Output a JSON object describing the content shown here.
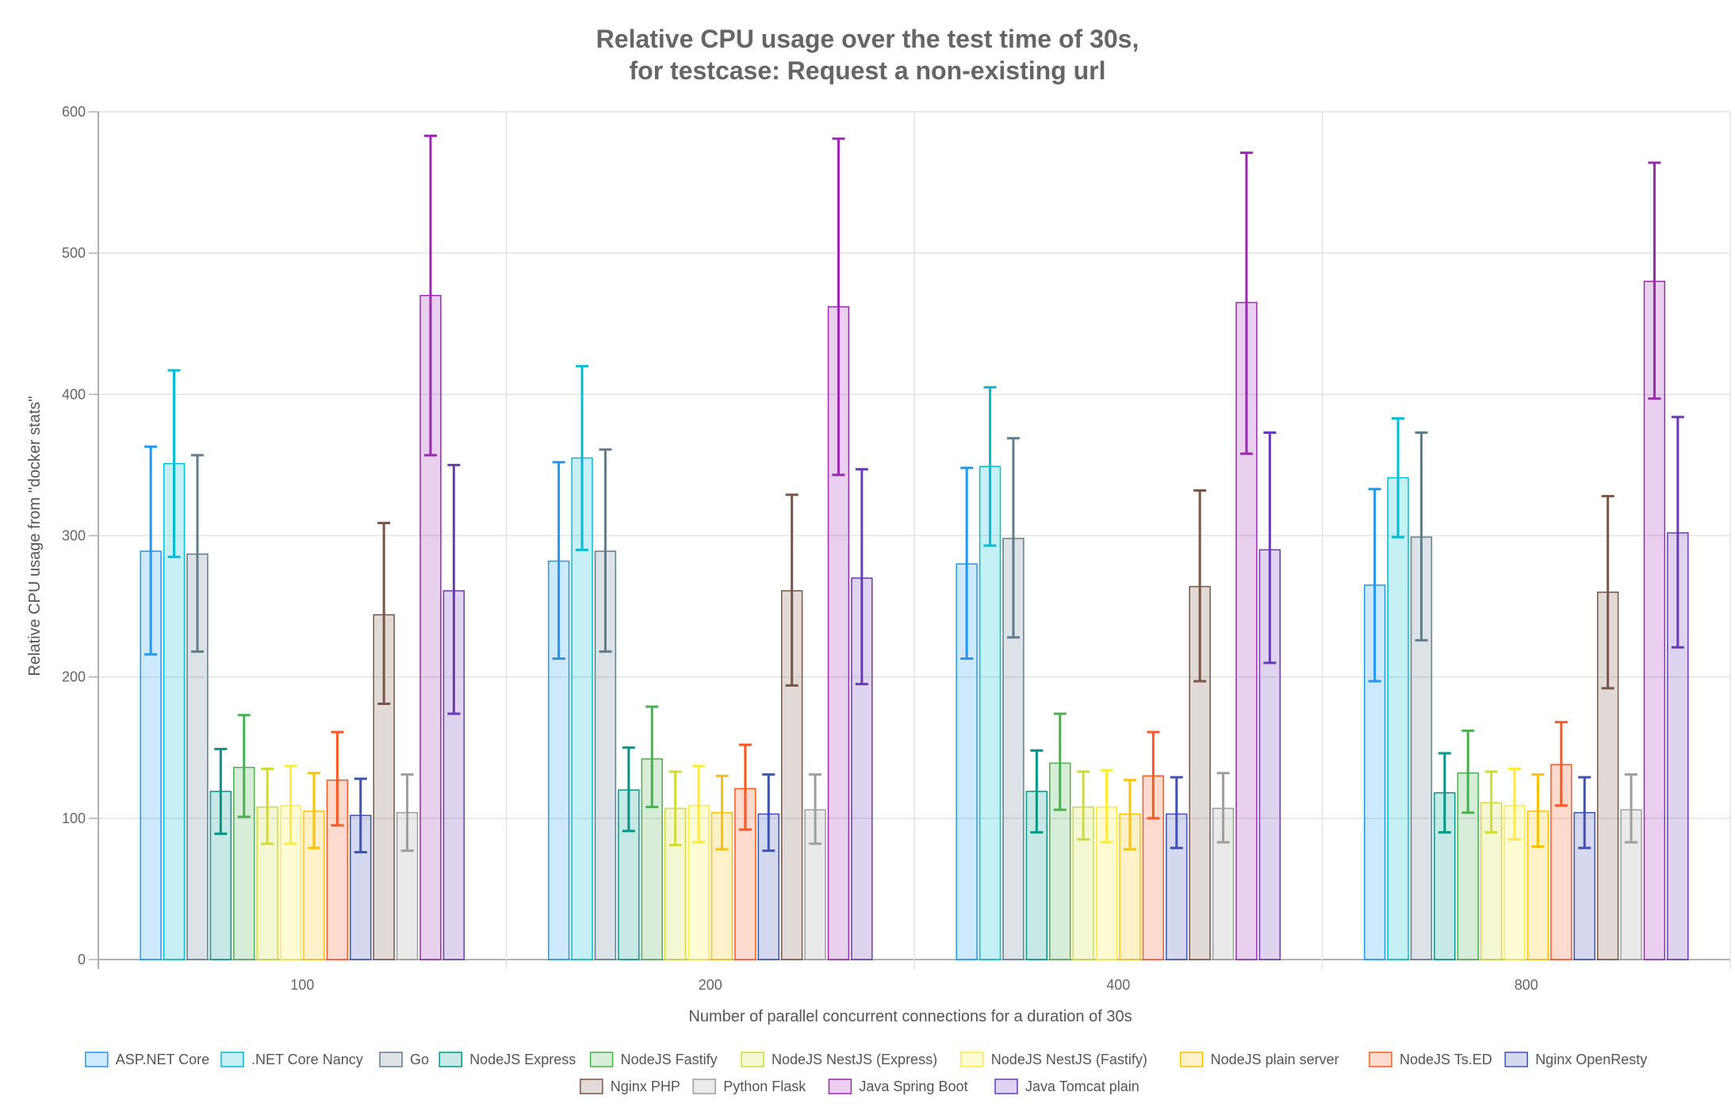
{
  "chart_data": {
    "type": "bar",
    "title_lines": [
      "Relative CPU usage over the test time of 30s,",
      "for testcase: Request a non-existing url"
    ],
    "xlabel": "Number of parallel concurrent connections for a duration of 30s",
    "ylabel": "Relative CPU usage from \"docker stats\"",
    "ylim": [
      0,
      600
    ],
    "yticks": [
      0,
      100,
      200,
      300,
      400,
      500,
      600
    ],
    "categories": [
      "100",
      "200",
      "400",
      "800"
    ],
    "grid": true,
    "legend_position": "bottom",
    "series": [
      {
        "name": "ASP.NET Core",
        "color": "#2196f3",
        "values": [
          289,
          282,
          280,
          265
        ],
        "err_low": [
          216,
          213,
          213,
          197
        ],
        "err_high": [
          363,
          352,
          348,
          333
        ]
      },
      {
        "name": ".NET Core Nancy",
        "color": "#00bcd4",
        "values": [
          351,
          355,
          349,
          341
        ],
        "err_low": [
          285,
          290,
          293,
          299
        ],
        "err_high": [
          417,
          420,
          405,
          383
        ]
      },
      {
        "name": "Go",
        "color": "#607d8b",
        "values": [
          287,
          289,
          298,
          299
        ],
        "err_low": [
          218,
          218,
          228,
          226
        ],
        "err_high": [
          357,
          361,
          369,
          373
        ]
      },
      {
        "name": "NodeJS Express",
        "color": "#009688",
        "values": [
          119,
          120,
          119,
          118
        ],
        "err_low": [
          89,
          91,
          90,
          90
        ],
        "err_high": [
          149,
          150,
          148,
          146
        ]
      },
      {
        "name": "NodeJS Fastify",
        "color": "#4caf50",
        "values": [
          136,
          142,
          139,
          132
        ],
        "err_low": [
          101,
          108,
          106,
          104
        ],
        "err_high": [
          173,
          179,
          174,
          162
        ]
      },
      {
        "name": "NodeJS NestJS (Express)",
        "color": "#cddc39",
        "values": [
          108,
          107,
          108,
          111
        ],
        "err_low": [
          82,
          81,
          85,
          90
        ],
        "err_high": [
          135,
          133,
          133,
          133
        ]
      },
      {
        "name": "NodeJS NestJS (Fastify)",
        "color": "#ffeb3b",
        "values": [
          109,
          109,
          108,
          109
        ],
        "err_low": [
          82,
          83,
          83,
          85
        ],
        "err_high": [
          137,
          137,
          134,
          135
        ]
      },
      {
        "name": "NodeJS plain server",
        "color": "#ffc107",
        "values": [
          105,
          104,
          103,
          105
        ],
        "err_low": [
          79,
          78,
          78,
          80
        ],
        "err_high": [
          132,
          130,
          127,
          131
        ]
      },
      {
        "name": "NodeJS Ts.ED",
        "color": "#ff5722",
        "values": [
          127,
          121,
          130,
          138
        ],
        "err_low": [
          95,
          92,
          100,
          109
        ],
        "err_high": [
          161,
          152,
          161,
          168
        ]
      },
      {
        "name": "Nginx OpenResty",
        "color": "#3f51b5",
        "values": [
          102,
          103,
          103,
          104
        ],
        "err_low": [
          76,
          77,
          79,
          79
        ],
        "err_high": [
          128,
          131,
          129,
          129
        ]
      },
      {
        "name": "Nginx PHP",
        "color": "#795548",
        "values": [
          244,
          261,
          264,
          260
        ],
        "err_low": [
          181,
          194,
          197,
          192
        ],
        "err_high": [
          309,
          329,
          332,
          328
        ]
      },
      {
        "name": "Python Flask",
        "color": "#9e9e9e",
        "values": [
          104,
          106,
          107,
          106
        ],
        "err_low": [
          77,
          82,
          83,
          83
        ],
        "err_high": [
          131,
          131,
          132,
          131
        ]
      },
      {
        "name": "Java Spring Boot",
        "color": "#9c27b0",
        "values": [
          470,
          462,
          465,
          480
        ],
        "err_low": [
          357,
          343,
          358,
          397
        ],
        "err_high": [
          583,
          581,
          571,
          564
        ]
      },
      {
        "name": "Java Tomcat plain",
        "color": "#673ab7",
        "values": [
          261,
          270,
          290,
          302
        ],
        "err_low": [
          174,
          195,
          210,
          221
        ],
        "err_high": [
          350,
          347,
          373,
          384
        ]
      }
    ]
  }
}
